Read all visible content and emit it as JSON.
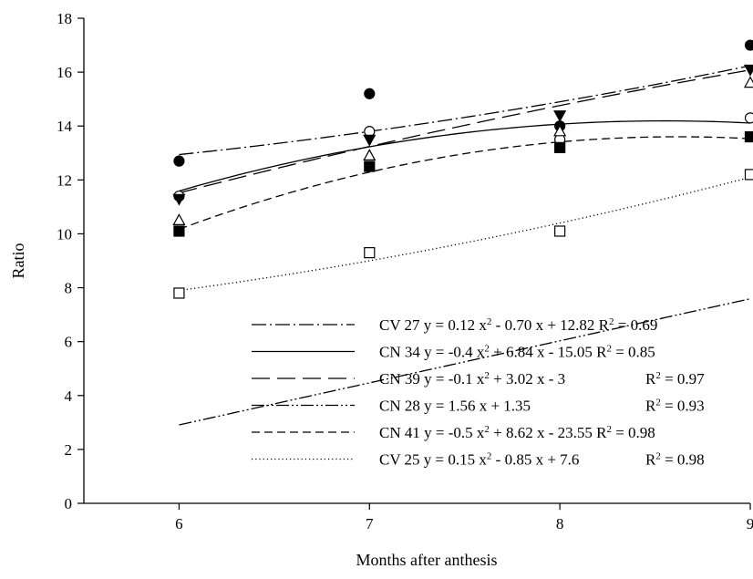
{
  "chart_data": {
    "type": "scatter",
    "title": "",
    "xlabel": "Months after anthesis",
    "ylabel": "Ratio",
    "xlim": [
      5.5,
      9
    ],
    "ylim": [
      0,
      18
    ],
    "x_ticks": [
      6,
      7,
      8,
      9
    ],
    "y_ticks": [
      0,
      2,
      4,
      6,
      8,
      10,
      12,
      14,
      16,
      18
    ],
    "grid": false,
    "legend_position": "bottom-right",
    "series": [
      {
        "name": "CV 27",
        "marker": "filled-circle",
        "line_style": "dash-dot",
        "x": [
          6,
          7,
          8,
          9
        ],
        "y": [
          12.7,
          15.2,
          14.0,
          17.0
        ],
        "fit": {
          "type": "quadratic",
          "a": 0.12,
          "b": -0.7,
          "c": 12.82
        },
        "equation": "CV 27 y = 0.12 x² - 0.70 x + 12.82 R² = 0.69"
      },
      {
        "name": "CN 34",
        "marker": "open-circle",
        "line_style": "solid",
        "x": [
          6,
          7,
          8,
          9
        ],
        "y": [
          11.4,
          13.8,
          13.5,
          14.3
        ],
        "fit": {
          "type": "quadratic",
          "a": -0.4,
          "b": 6.84,
          "c": -15.05
        },
        "equation": "CN 34 y = -0.4 x² + 6.84 x - 15.05 R² = 0.85"
      },
      {
        "name": "CN 39",
        "marker": "filled-triangle-down",
        "line_style": "long-dash",
        "x": [
          6,
          7,
          8,
          9
        ],
        "y": [
          11.3,
          13.5,
          14.4,
          16.1
        ],
        "fit": {
          "type": "quadratic",
          "a": -0.1,
          "b": 3.02,
          "c": -3
        },
        "equation": "CN 39 y = -0.1 x² + 3.02 x - 3",
        "r2": "R² = 0.97"
      },
      {
        "name": "CN 28",
        "marker": "open-triangle-up",
        "line_style": "dash-dot-dot",
        "x": [
          6,
          7,
          8,
          9
        ],
        "y": [
          10.5,
          12.9,
          13.8,
          15.6
        ],
        "fit": {
          "type": "linear",
          "m": 1.56,
          "b": 1.35,
          "x_offset": 5
        },
        "equation": "CN 28 y = 1.56 x + 1.35",
        "r2": "R² = 0.93"
      },
      {
        "name": "CN 41",
        "marker": "filled-square",
        "line_style": "dash",
        "x": [
          6,
          7,
          8,
          9
        ],
        "y": [
          10.1,
          12.5,
          13.2,
          13.6
        ],
        "fit": {
          "type": "quadratic",
          "a": -0.5,
          "b": 8.62,
          "c": -23.55
        },
        "equation": "CN 41 y = -0.5 x² + 8.62 x - 23.55 R² = 0.98"
      },
      {
        "name": "CV 25",
        "marker": "open-square",
        "line_style": "dotted",
        "x": [
          6,
          7,
          8,
          9
        ],
        "y": [
          7.8,
          9.3,
          10.1,
          12.2
        ],
        "fit": {
          "type": "quadratic",
          "a": 0.15,
          "b": -0.85,
          "c": 7.6
        },
        "equation": "CV 25 y = 0.15 x² - 0.85 x + 7.6",
        "r2": "R² = 0.98"
      }
    ]
  }
}
